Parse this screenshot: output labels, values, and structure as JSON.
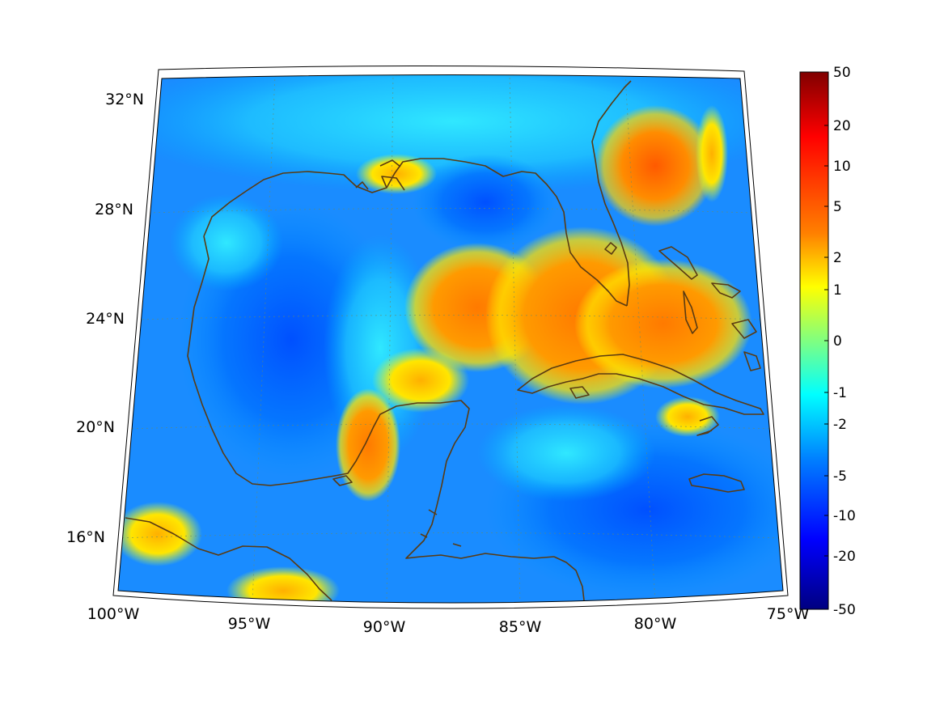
{
  "map": {
    "projection": "conic",
    "region": "Gulf of Mexico, Caribbean and Florida",
    "lon_range": [
      -100,
      -75
    ],
    "lat_range": [
      14,
      33
    ],
    "coastline_color": "#5a3b12",
    "graticule": "dotted"
  },
  "lon_labels": [
    "100°W",
    "95°W",
    "90°W",
    "85°W",
    "80°W",
    "75°W"
  ],
  "lat_labels": [
    "16°N",
    "20°N",
    "24°N",
    "28°N",
    "32°N"
  ],
  "colorbar": {
    "colormap": "jet",
    "ticks": [
      "50",
      "20",
      "10",
      "5",
      "2",
      "1",
      "0",
      "-1",
      "-2",
      "-5",
      "-10",
      "-20",
      "-50"
    ]
  },
  "colors": {
    "dark_red": "#800000",
    "red": "#ff0000",
    "orange": "#ff8000",
    "yellow": "#ffff00",
    "green": "#80ff80",
    "cyan": "#00ffff",
    "light_blue": "#0080ff",
    "blue": "#0000ff",
    "dark_blue": "#000080"
  }
}
